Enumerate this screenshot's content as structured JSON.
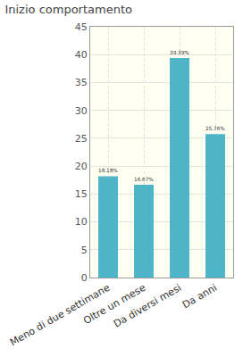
{
  "chart_data": {
    "type": "bar",
    "title": "Inizio comportamento",
    "categories": [
      "Meno di due settimane",
      "Oltre un mese",
      "Da diversi mesi",
      "Da anni"
    ],
    "values": [
      18.18,
      16.67,
      39.39,
      25.76
    ],
    "value_labels": [
      "18.18%",
      "16.67%",
      "39.39%",
      "25.76%"
    ],
    "color": "#4fb5c8",
    "ylim": [
      0,
      45
    ],
    "yticks": [
      0,
      5,
      10,
      15,
      20,
      25,
      30,
      35,
      40,
      45
    ],
    "grid": true,
    "data_labels": true
  }
}
